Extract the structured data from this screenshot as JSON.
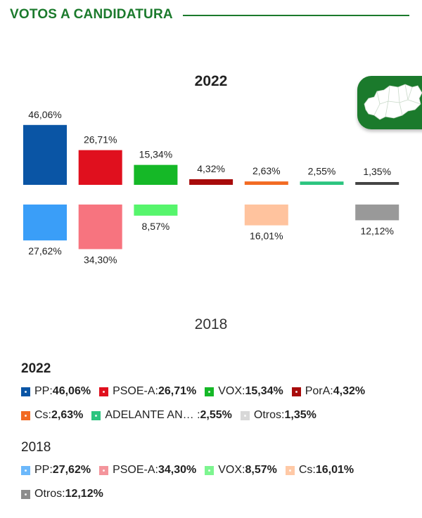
{
  "header": {
    "title": "VOTOS A CANDIDATURA"
  },
  "chart_data": {
    "type": "bar",
    "categories": [
      "PP",
      "PSOE-A",
      "VOX",
      "PorA",
      "Cs",
      "ADELANTE AN…",
      "Otros"
    ],
    "series": [
      {
        "name": "2022",
        "values": [
          46.06,
          26.71,
          15.34,
          4.32,
          2.63,
          2.55,
          1.35
        ],
        "labels": [
          "46,06%",
          "26,71%",
          "15,34%",
          "4,32%",
          "2,63%",
          "2,55%",
          "1,35%"
        ],
        "colors": [
          "#0a55a5",
          "#e0101e",
          "#15b827",
          "#a80b0b",
          "#f26a22",
          "#2bc47f",
          "#444444"
        ]
      },
      {
        "name": "2018",
        "values": [
          27.62,
          34.3,
          8.57,
          null,
          16.01,
          null,
          12.12
        ],
        "labels": [
          "27,62%",
          "34,30%",
          "8,57%",
          "",
          "16,01%",
          "",
          "12,12%"
        ],
        "colors": [
          "#3a9ef8",
          "#f7747f",
          "#56f56c",
          "#cccccc",
          "#ffc39e",
          "#cccccc",
          "#999999"
        ]
      }
    ],
    "ylim": [
      0,
      50
    ]
  },
  "legend": {
    "y2022": {
      "year": "2022",
      "rows": [
        [
          {
            "name": "PP",
            "value": "46,06%",
            "color": "#0a55a5"
          },
          {
            "name": "PSOE-A",
            "value": "26,71%",
            "color": "#e0101e"
          },
          {
            "name": "VOX",
            "value": "15,34%",
            "color": "#15b827"
          },
          {
            "name": "PorA",
            "value": "4,32%",
            "color": "#a80b0b"
          }
        ],
        [
          {
            "name": "Cs",
            "value": "2,63%",
            "color": "#f26a22"
          },
          {
            "name": "ADELANTE AN… ",
            "value": "2,55%",
            "color": "#2bc47f"
          },
          {
            "name": "Otros",
            "value": "1,35%",
            "color": "#d8d8d8"
          }
        ]
      ]
    },
    "y2018": {
      "year": "2018",
      "rows": [
        [
          {
            "name": "PP",
            "value": "27,62%",
            "color": "#6cb8fb"
          },
          {
            "name": "PSOE-A",
            "value": "34,30%",
            "color": "#f4959c"
          },
          {
            "name": "VOX",
            "value": "8,57%",
            "color": "#7df590"
          },
          {
            "name": "Cs",
            "value": "16,01%",
            "color": "#ffc9a6"
          }
        ],
        [
          {
            "name": "Otros",
            "value": "12,12%",
            "color": "#8c8c8c"
          }
        ]
      ]
    }
  }
}
